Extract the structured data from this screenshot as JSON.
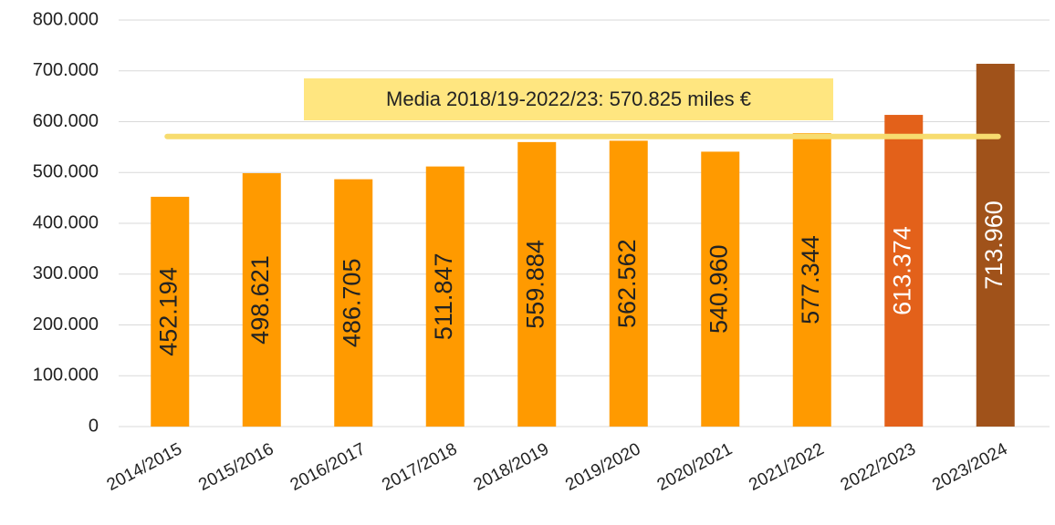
{
  "chart_data": {
    "type": "bar",
    "categories": [
      "2014/2015",
      "2015/2016",
      "2016/2017",
      "2017/2018",
      "2018/2019",
      "2019/2020",
      "2020/2021",
      "2021/2022",
      "2022/2023",
      "2023/2024"
    ],
    "values": [
      452194,
      498621,
      486705,
      511847,
      559884,
      562562,
      540960,
      577344,
      613374,
      713960
    ],
    "value_labels": [
      "452.194",
      "498.621",
      "486.705",
      "511.847",
      "559.884",
      "562.562",
      "540.960",
      "577.344",
      "613.374",
      "713.960"
    ],
    "colors": [
      "#ff9a00",
      "#ff9a00",
      "#ff9a00",
      "#ff9a00",
      "#ff9a00",
      "#ff9a00",
      "#ff9a00",
      "#ff9a00",
      "#e3611a",
      "#a0521a"
    ],
    "ylim": [
      0,
      800000
    ],
    "yticks": [
      0,
      {
        "value": 100000,
        "label": "100.000"
      },
      {
        "value": 200000,
        "label": "200.000"
      },
      {
        "value": 300000,
        "label": "300.000"
      },
      {
        "value": 400000,
        "label": "400.000"
      },
      {
        "value": 500000,
        "label": "500.000"
      },
      {
        "value": 600000,
        "label": "600.000"
      },
      {
        "value": 700000,
        "label": "700.000"
      },
      {
        "value": 800000,
        "label": "800.000"
      }
    ],
    "grid": true,
    "annotation": {
      "text": "Media 2018/19-2022/23: 570.825 miles €",
      "value": 570825,
      "color": "#f7dc6f"
    }
  }
}
